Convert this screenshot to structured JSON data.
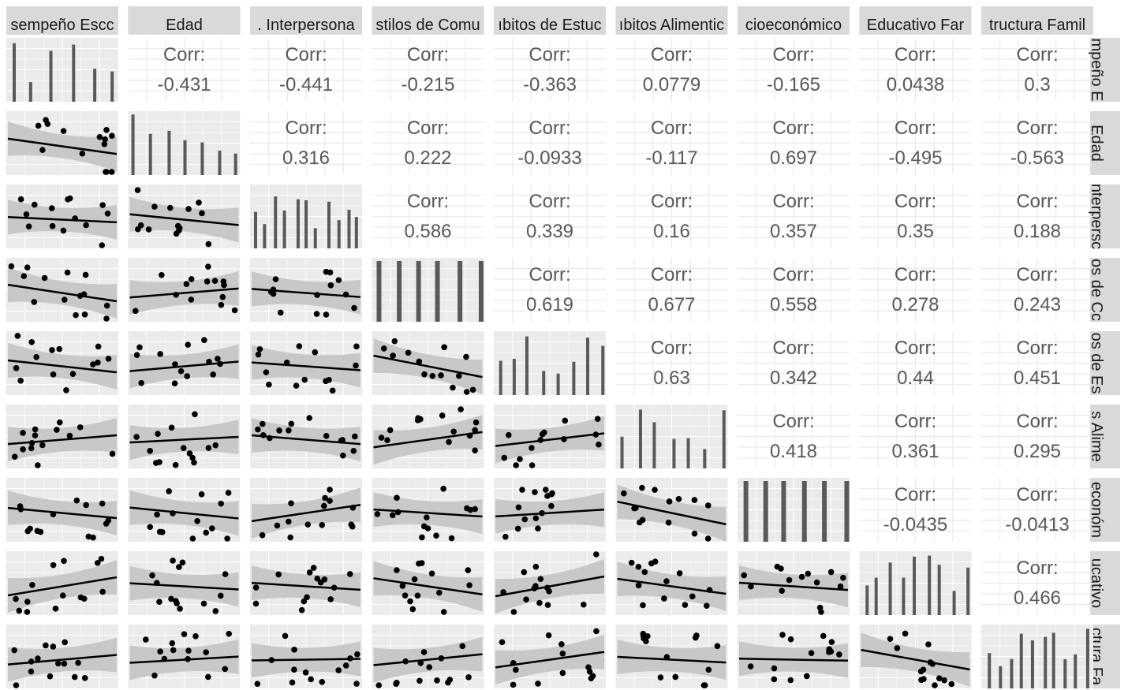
{
  "chart_data": {
    "type": "pairs",
    "variables": [
      "Desempeño Escolar",
      "Edad",
      "Habilidades Interpersonales",
      "Estilos de Comunicación",
      "Hábitos de Estudio",
      "Hábitos Alimenticios",
      "Nivel Socioeconómico",
      "Nivel Educativo Familiar",
      "Estructura Familiar"
    ],
    "strip_labels": {
      "top": [
        "sempeño Escc",
        "Edad",
        ". Interpersona",
        "stilos de Comu",
        "ıbitos de Estuc",
        "ıbitos Alimentic",
        "cioeconómico",
        "Educativo Far",
        "tructura Famil"
      ],
      "right": [
        "mpeño E",
        "Edad",
        "nterpersc",
        "os de Cc",
        "os de Es",
        "s Alime",
        "económ",
        "ucativo",
        "ctura Fa"
      ]
    },
    "corr_label": "Corr:",
    "correlations": [
      {
        "row": 0,
        "col": 1,
        "value": "-0.431"
      },
      {
        "row": 0,
        "col": 2,
        "value": "-0.441"
      },
      {
        "row": 0,
        "col": 3,
        "value": "-0.215"
      },
      {
        "row": 0,
        "col": 4,
        "value": "-0.363"
      },
      {
        "row": 0,
        "col": 5,
        "value": "0.0779"
      },
      {
        "row": 0,
        "col": 6,
        "value": "-0.165"
      },
      {
        "row": 0,
        "col": 7,
        "value": "0.0438"
      },
      {
        "row": 0,
        "col": 8,
        "value": "0.3"
      },
      {
        "row": 1,
        "col": 2,
        "value": "0.316"
      },
      {
        "row": 1,
        "col": 3,
        "value": "0.222"
      },
      {
        "row": 1,
        "col": 4,
        "value": "-0.0933"
      },
      {
        "row": 1,
        "col": 5,
        "value": "-0.117"
      },
      {
        "row": 1,
        "col": 6,
        "value": "0.697"
      },
      {
        "row": 1,
        "col": 7,
        "value": "-0.495"
      },
      {
        "row": 1,
        "col": 8,
        "value": "-0.563"
      },
      {
        "row": 2,
        "col": 3,
        "value": "0.586"
      },
      {
        "row": 2,
        "col": 4,
        "value": "0.339"
      },
      {
        "row": 2,
        "col": 5,
        "value": "0.16"
      },
      {
        "row": 2,
        "col": 6,
        "value": "0.357"
      },
      {
        "row": 2,
        "col": 7,
        "value": "0.35"
      },
      {
        "row": 2,
        "col": 8,
        "value": "0.188"
      },
      {
        "row": 3,
        "col": 4,
        "value": "0.619"
      },
      {
        "row": 3,
        "col": 5,
        "value": "0.677"
      },
      {
        "row": 3,
        "col": 6,
        "value": "0.558"
      },
      {
        "row": 3,
        "col": 7,
        "value": "0.278"
      },
      {
        "row": 3,
        "col": 8,
        "value": "0.243"
      },
      {
        "row": 4,
        "col": 5,
        "value": "0.63"
      },
      {
        "row": 4,
        "col": 6,
        "value": "0.342"
      },
      {
        "row": 4,
        "col": 7,
        "value": "0.44"
      },
      {
        "row": 4,
        "col": 8,
        "value": "0.451"
      },
      {
        "row": 5,
        "col": 6,
        "value": "0.418"
      },
      {
        "row": 5,
        "col": 7,
        "value": "0.361"
      },
      {
        "row": 5,
        "col": 8,
        "value": "0.295"
      },
      {
        "row": 6,
        "col": 7,
        "value": "-0.0435"
      },
      {
        "row": 6,
        "col": 8,
        "value": "-0.0413"
      },
      {
        "row": 7,
        "col": 8,
        "value": "0.466"
      }
    ],
    "grid": true,
    "colors": {
      "panel_bg": "#ebebeb",
      "grid": "#ffffff",
      "strip_bg": "#d9d9d9",
      "points": "#000000",
      "bars": "#595959",
      "ribbon": "#c8c8c8",
      "corr_text": "#595959"
    }
  }
}
